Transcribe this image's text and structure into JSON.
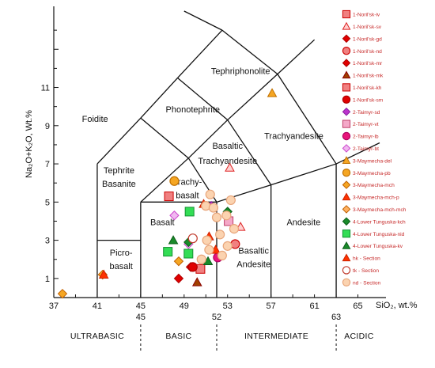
{
  "chart_data": {
    "type": "scatter",
    "xlabel": "SiO₂, wt.%",
    "ylabel": "Na₂O+K₂O, Wt.%",
    "xlim": [
      37,
      67
    ],
    "ylim": [
      0,
      15
    ],
    "xticks": [
      "37",
      "41",
      "45",
      "49",
      "53",
      "57",
      "61",
      "65"
    ],
    "yticks": [
      "1",
      "3",
      "5",
      "7",
      "9",
      "11"
    ],
    "grid": false,
    "legend_position": "right",
    "fields": [
      {
        "label": "Foidite",
        "x": 40.8,
        "y": 9.2
      },
      {
        "label": "Phonotephrite",
        "x": 49.8,
        "y": 9.7
      },
      {
        "label": "Tephriphonolite",
        "x": 54.2,
        "y": 11.7
      },
      {
        "label": "Trachyandesite",
        "x": 59.1,
        "y": 8.3
      },
      {
        "label": "Basaltic",
        "x": 53.0,
        "y": 7.8
      },
      {
        "label": "Trachyandesite",
        "x": 53.0,
        "y": 7.0
      },
      {
        "label": "Tephrite",
        "x": 43.0,
        "y": 6.5
      },
      {
        "label": "Basanite",
        "x": 43.0,
        "y": 5.8
      },
      {
        "label": "Trachy-",
        "x": 49.3,
        "y": 5.9
      },
      {
        "label": "basalt",
        "x": 49.3,
        "y": 5.2
      },
      {
        "label": "Basalt",
        "x": 47.0,
        "y": 3.8
      },
      {
        "label": "Basaltic",
        "x": 55.4,
        "y": 2.3
      },
      {
        "label": "Andesite",
        "x": 55.4,
        "y": 1.6
      },
      {
        "label": "Andesite",
        "x": 60.0,
        "y": 3.8
      },
      {
        "label": "Picro-",
        "x": 43.2,
        "y": 2.2
      },
      {
        "label": "basalt",
        "x": 43.2,
        "y": 1.5
      }
    ],
    "regions": [
      {
        "label": "ULTRABASIC",
        "x": 41
      },
      {
        "label": "BASIC",
        "x": 48.5
      },
      {
        "label": "INTERMEDIATE",
        "x": 57.5
      },
      {
        "label": "ACIDIC",
        "x": 65.1
      }
    ],
    "boundaries": [
      {
        "label": "45",
        "x": 45
      },
      {
        "label": "52",
        "x": 52
      },
      {
        "label": "63",
        "x": 63
      }
    ],
    "series": [
      {
        "name": "1-Noril'sk-iv",
        "marker": "square",
        "fill": "#f08080",
        "stroke": "#cc0000",
        "points": [
          [
            47.6,
            5.3
          ],
          [
            50.5,
            1.5
          ]
        ]
      },
      {
        "name": "1-Noril'sk-sv",
        "marker": "triangle",
        "fill": "#ffd0d0",
        "stroke": "#dd2222",
        "points": [
          [
            53.2,
            6.8
          ],
          [
            54.2,
            3.7
          ]
        ]
      },
      {
        "name": "1-Noril'sk-gd",
        "marker": "diamond",
        "fill": "#e00000",
        "stroke": "#b00000",
        "points": [
          [
            48.5,
            1.0
          ]
        ]
      },
      {
        "name": "1-Noril'sk-nd",
        "marker": "circle",
        "fill": "#f08080",
        "stroke": "#cc0000",
        "points": [
          [
            53.7,
            2.8
          ]
        ]
      },
      {
        "name": "1-Noril'sk-mr",
        "marker": "diamond",
        "fill": "#e00000",
        "stroke": "#b00000",
        "points": [
          [
            49.6,
            1.6
          ]
        ]
      },
      {
        "name": "1-Noril'sk-mk",
        "marker": "triangle",
        "fill": "#a04000",
        "stroke": "#8b0000",
        "points": [
          [
            50.2,
            0.8
          ]
        ]
      },
      {
        "name": "1-Noril'sk-kh",
        "marker": "square",
        "fill": "#f08080",
        "stroke": "#cc0000",
        "points": []
      },
      {
        "name": "1-Noril'sk-sm",
        "marker": "circle",
        "fill": "#e00000",
        "stroke": "#b00000",
        "points": [
          [
            49.8,
            1.6
          ]
        ]
      },
      {
        "name": "2-Taimyr-sd",
        "marker": "diamond",
        "fill": "#bb33cc",
        "stroke": "#8a1ea0",
        "points": [
          [
            51.5,
            4.8
          ]
        ]
      },
      {
        "name": "2-Taimyr-vt",
        "marker": "square",
        "fill": "#f4a8c8",
        "stroke": "#c0406a",
        "points": [
          [
            53.1,
            4.0
          ]
        ]
      },
      {
        "name": "2-Taimyr-lb",
        "marker": "circle",
        "fill": "#e8157a",
        "stroke": "#b00060",
        "points": [
          [
            52.1,
            2.1
          ]
        ]
      },
      {
        "name": "2-Taimyr-bt",
        "marker": "diamond",
        "fill": "#f0b8f0",
        "stroke": "#cc44cc",
        "points": [
          [
            48.1,
            4.3
          ],
          [
            49.4,
            2.8
          ]
        ]
      },
      {
        "name": "3-Maymecha-del",
        "marker": "triangle",
        "fill": "#f5a623",
        "stroke": "#c07000",
        "points": [
          [
            57.1,
            10.7
          ]
        ]
      },
      {
        "name": "3-Maymecha-pb",
        "marker": "circle",
        "fill": "#f5a623",
        "stroke": "#c07000",
        "points": [
          [
            48.1,
            6.1
          ]
        ]
      },
      {
        "name": "3-Maymecha-mch",
        "marker": "diamond",
        "fill": "#f5a623",
        "stroke": "#c06000",
        "points": [
          [
            41.5,
            1.2
          ],
          [
            37.8,
            0.2
          ],
          [
            48.5,
            1.9
          ]
        ]
      },
      {
        "name": "3-Maymecha-mch-p",
        "marker": "triangle",
        "fill": "#ff3300",
        "stroke": "#cc2200",
        "points": [
          [
            50.8,
            4.9
          ],
          [
            51.3,
            3.2
          ],
          [
            51.9,
            2.5
          ],
          [
            41.6,
            1.2
          ]
        ]
      },
      {
        "name": "3-Maymecha-mch-mch",
        "marker": "diamond",
        "fill": "#ffb060",
        "stroke": "#c06000",
        "points": []
      },
      {
        "name": "4-Lower Tunguska-kch",
        "marker": "diamond",
        "fill": "#1a8a2a",
        "stroke": "#0b5e18",
        "points": [
          [
            49.4,
            2.9
          ],
          [
            53.0,
            4.5
          ]
        ]
      },
      {
        "name": "4-Lower Tunguska-nid",
        "marker": "square",
        "fill": "#33dd55",
        "stroke": "#129030",
        "points": [
          [
            47.5,
            2.4
          ],
          [
            49.4,
            2.3
          ],
          [
            49.5,
            4.5
          ]
        ]
      },
      {
        "name": "4-Lower Tunguska-kv",
        "marker": "triangle",
        "fill": "#1a8a2a",
        "stroke": "#0b5e18",
        "points": [
          [
            51.2,
            1.9
          ],
          [
            48.0,
            3.0
          ]
        ]
      },
      {
        "name": "hk - Section",
        "marker": "triangle",
        "fill": "#ff3300",
        "stroke": "#cc2200",
        "points": []
      },
      {
        "name": "tk - Section",
        "marker": "circle",
        "fill": "#ffffff",
        "stroke": "#c0392b",
        "points": [
          [
            49.8,
            3.1
          ]
        ]
      },
      {
        "name": "nd - Section",
        "marker": "circle",
        "fill": "#fbd3b0",
        "stroke": "#e8a57a",
        "points": [
          [
            50.6,
            2.0
          ],
          [
            51.0,
            4.8
          ],
          [
            51.4,
            5.4
          ],
          [
            51.7,
            4.7
          ],
          [
            52.0,
            4.2
          ],
          [
            52.3,
            3.3
          ],
          [
            52.9,
            4.3
          ],
          [
            53.3,
            5.1
          ],
          [
            53.6,
            3.6
          ],
          [
            53.0,
            2.7
          ],
          [
            52.5,
            2.2
          ],
          [
            51.3,
            2.5
          ],
          [
            51.1,
            3.0
          ]
        ]
      }
    ]
  }
}
